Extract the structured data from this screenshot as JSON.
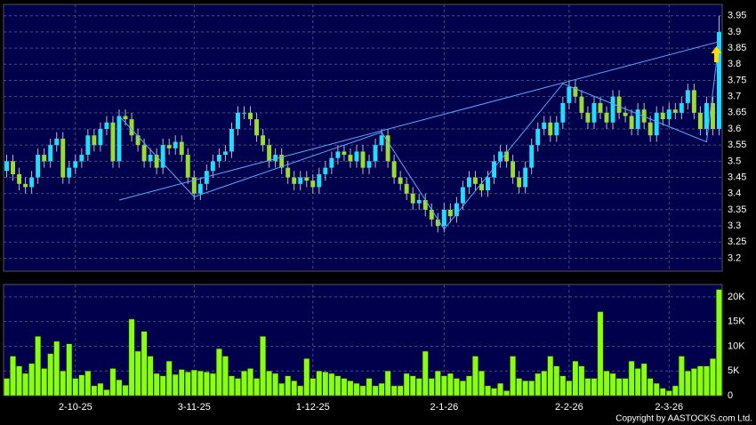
{
  "chart_data": [
    {
      "type": "candlestick",
      "categories": [
        null,
        null,
        null,
        null,
        null,
        null,
        null,
        null,
        null,
        null,
        null,
        "2-10-25",
        null,
        null,
        null,
        null,
        null,
        null,
        null,
        null,
        null,
        null,
        null,
        null,
        null,
        null,
        null,
        null,
        null,
        null,
        "3-11-25",
        null,
        null,
        null,
        null,
        null,
        null,
        null,
        null,
        null,
        null,
        null,
        null,
        null,
        null,
        null,
        null,
        null,
        null,
        "1-12-25",
        null,
        null,
        null,
        null,
        null,
        null,
        null,
        null,
        null,
        null,
        null,
        null,
        null,
        null,
        null,
        null,
        null,
        null,
        null,
        null,
        "2-1-26",
        null,
        null,
        null,
        null,
        null,
        null,
        null,
        null,
        null,
        null,
        null,
        null,
        null,
        null,
        null,
        null,
        null,
        null,
        null,
        "2-2-26",
        null,
        null,
        null,
        null,
        null,
        null,
        null,
        null,
        null,
        null,
        null,
        null,
        null,
        null,
        null,
        "2-3-26",
        null,
        null,
        null,
        null,
        null,
        null,
        null,
        null
      ],
      "open": [
        3.47,
        3.5,
        3.46,
        3.43,
        3.42,
        3.45,
        3.52,
        3.5,
        3.55,
        3.57,
        3.45,
        3.48,
        3.5,
        3.52,
        3.58,
        3.55,
        3.6,
        3.62,
        3.5,
        3.64,
        3.63,
        3.58,
        3.55,
        3.5,
        3.52,
        3.48,
        3.55,
        3.54,
        3.56,
        3.52,
        3.45,
        3.4,
        3.43,
        3.47,
        3.5,
        3.52,
        3.53,
        3.6,
        3.65,
        3.65,
        3.63,
        3.58,
        3.55,
        3.5,
        3.52,
        3.48,
        3.45,
        3.43,
        3.45,
        3.44,
        3.42,
        3.46,
        3.48,
        3.51,
        3.53,
        3.52,
        3.5,
        3.53,
        3.48,
        3.5,
        3.55,
        3.58,
        3.5,
        3.45,
        3.43,
        3.4,
        3.37,
        3.38,
        3.35,
        3.32,
        3.3,
        3.35,
        3.33,
        3.37,
        3.42,
        3.45,
        3.43,
        3.41,
        3.45,
        3.5,
        3.53,
        3.5,
        3.45,
        3.42,
        3.48,
        3.55,
        3.6,
        3.62,
        3.58,
        3.62,
        3.68,
        3.73,
        3.7,
        3.65,
        3.62,
        3.68,
        3.65,
        3.62,
        3.7,
        3.65,
        3.64,
        3.6,
        3.66,
        3.62,
        3.58,
        3.65,
        3.63,
        3.66,
        3.65,
        3.68,
        3.72,
        3.65,
        3.6,
        3.68,
        3.6
      ],
      "high": [
        3.52,
        3.52,
        3.48,
        3.45,
        3.47,
        3.54,
        3.54,
        3.57,
        3.59,
        3.59,
        3.5,
        3.52,
        3.54,
        3.6,
        3.6,
        3.62,
        3.64,
        3.64,
        3.66,
        3.66,
        3.65,
        3.6,
        3.57,
        3.54,
        3.54,
        3.57,
        3.57,
        3.58,
        3.58,
        3.54,
        3.47,
        3.45,
        3.49,
        3.52,
        3.54,
        3.55,
        3.62,
        3.67,
        3.67,
        3.67,
        3.65,
        3.6,
        3.57,
        3.54,
        3.54,
        3.5,
        3.47,
        3.47,
        3.47,
        3.46,
        3.48,
        3.5,
        3.53,
        3.55,
        3.55,
        3.54,
        3.55,
        3.55,
        3.52,
        3.57,
        3.6,
        3.6,
        3.52,
        3.47,
        3.45,
        3.42,
        3.4,
        3.4,
        3.37,
        3.34,
        3.37,
        3.37,
        3.39,
        3.44,
        3.47,
        3.47,
        3.45,
        3.47,
        3.52,
        3.55,
        3.55,
        3.52,
        3.47,
        3.5,
        3.57,
        3.62,
        3.64,
        3.64,
        3.64,
        3.7,
        3.75,
        3.75,
        3.72,
        3.67,
        3.7,
        3.7,
        3.67,
        3.72,
        3.72,
        3.67,
        3.66,
        3.68,
        3.68,
        3.64,
        3.67,
        3.67,
        3.68,
        3.68,
        3.7,
        3.74,
        3.74,
        3.67,
        3.7,
        3.7,
        3.95
      ],
      "low": [
        3.45,
        3.44,
        3.41,
        3.4,
        3.4,
        3.43,
        3.48,
        3.48,
        3.53,
        3.43,
        3.43,
        3.46,
        3.48,
        3.5,
        3.53,
        3.53,
        3.58,
        3.48,
        3.48,
        3.61,
        3.56,
        3.53,
        3.48,
        3.48,
        3.46,
        3.46,
        3.52,
        3.52,
        3.5,
        3.43,
        3.38,
        3.38,
        3.41,
        3.45,
        3.48,
        3.5,
        3.51,
        3.58,
        3.63,
        3.61,
        3.56,
        3.53,
        3.48,
        3.48,
        3.46,
        3.43,
        3.41,
        3.41,
        3.42,
        3.4,
        3.4,
        3.44,
        3.46,
        3.49,
        3.5,
        3.48,
        3.48,
        3.46,
        3.46,
        3.48,
        3.53,
        3.48,
        3.43,
        3.41,
        3.38,
        3.35,
        3.35,
        3.33,
        3.3,
        3.28,
        3.28,
        3.31,
        3.31,
        3.35,
        3.4,
        3.41,
        3.39,
        3.39,
        3.43,
        3.48,
        3.48,
        3.43,
        3.4,
        3.4,
        3.46,
        3.53,
        3.58,
        3.56,
        3.56,
        3.6,
        3.66,
        3.68,
        3.63,
        3.6,
        3.6,
        3.63,
        3.6,
        3.6,
        3.63,
        3.62,
        3.58,
        3.58,
        3.6,
        3.56,
        3.56,
        3.61,
        3.61,
        3.63,
        3.63,
        3.66,
        3.63,
        3.58,
        3.58,
        3.58,
        3.58
      ],
      "close": [
        3.5,
        3.46,
        3.43,
        3.42,
        3.45,
        3.52,
        3.5,
        3.55,
        3.57,
        3.45,
        3.48,
        3.5,
        3.52,
        3.58,
        3.55,
        3.6,
        3.62,
        3.5,
        3.64,
        3.63,
        3.58,
        3.55,
        3.5,
        3.52,
        3.48,
        3.55,
        3.54,
        3.56,
        3.52,
        3.45,
        3.4,
        3.43,
        3.47,
        3.5,
        3.52,
        3.53,
        3.6,
        3.65,
        3.65,
        3.63,
        3.58,
        3.55,
        3.5,
        3.52,
        3.48,
        3.45,
        3.43,
        3.45,
        3.44,
        3.42,
        3.46,
        3.48,
        3.51,
        3.53,
        3.52,
        3.5,
        3.53,
        3.48,
        3.5,
        3.55,
        3.58,
        3.5,
        3.45,
        3.43,
        3.4,
        3.37,
        3.38,
        3.35,
        3.32,
        3.3,
        3.35,
        3.33,
        3.37,
        3.42,
        3.45,
        3.43,
        3.41,
        3.45,
        3.5,
        3.53,
        3.5,
        3.45,
        3.42,
        3.48,
        3.55,
        3.6,
        3.62,
        3.58,
        3.62,
        3.68,
        3.73,
        3.7,
        3.65,
        3.62,
        3.68,
        3.65,
        3.62,
        3.7,
        3.65,
        3.64,
        3.6,
        3.66,
        3.62,
        3.58,
        3.65,
        3.63,
        3.66,
        3.65,
        3.68,
        3.72,
        3.65,
        3.6,
        3.68,
        3.6,
        3.9
      ],
      "up_color": "#22ddff",
      "down_color": "#99dd33",
      "ylim": [
        3.16,
        3.985
      ],
      "yticks": [
        3.2,
        3.25,
        3.3,
        3.35,
        3.4,
        3.45,
        3.5,
        3.55,
        3.6,
        3.65,
        3.7,
        3.75,
        3.8,
        3.85,
        3.9,
        3.95
      ],
      "grid": true,
      "trendlines": [
        {
          "color": "#55aaff",
          "x": [
            18,
            114
          ],
          "y": [
            3.38,
            3.87
          ]
        },
        {
          "color": "#55aaff",
          "x": [
            18,
            30,
            60,
            70,
            89,
            112,
            114
          ],
          "y": [
            3.64,
            3.39,
            3.59,
            3.29,
            3.74,
            3.56,
            3.87
          ]
        }
      ]
    },
    {
      "type": "bar",
      "values": [
        3500,
        8000,
        6000,
        4500,
        6500,
        12000,
        5500,
        8500,
        11000,
        5000,
        10500,
        3500,
        4200,
        5000,
        2000,
        2500,
        1200,
        5500,
        3200,
        2100,
        15500,
        9000,
        13000,
        8000,
        4500,
        4000,
        7000,
        4300,
        5300,
        4800,
        5200,
        5000,
        4800,
        4500,
        9500,
        8000,
        4000,
        3500,
        5000,
        5500,
        3500,
        12000,
        5000,
        4500,
        2500,
        4000,
        3000,
        2000,
        7500,
        3500,
        5000,
        4800,
        4500,
        4000,
        3500,
        3000,
        2500,
        2000,
        3500,
        2000,
        2500,
        5000,
        2000,
        2000,
        4500,
        4000,
        3500,
        9000,
        3500,
        5000,
        4000,
        4500,
        3500,
        3000,
        4000,
        8000,
        5000,
        2000,
        1500,
        2500,
        1000,
        8000,
        3500,
        3000,
        3000,
        4500,
        5000,
        8000,
        6000,
        4000,
        3000,
        7000,
        6000,
        3500,
        3500,
        17000,
        5000,
        4500,
        3500,
        3500,
        7000,
        5500,
        6500,
        3500,
        2500,
        1500,
        1000,
        2000,
        8000,
        5000,
        5500,
        6000,
        6000,
        7500,
        21500
      ],
      "color": "#88ff11",
      "ylim": [
        0,
        22500
      ],
      "yticks": [
        0,
        {
          "value": 5000,
          "label": "5K"
        },
        {
          "value": 10000,
          "label": "10K"
        },
        {
          "value": 15000,
          "label": "15K"
        },
        {
          "value": 20000,
          "label": "20K"
        }
      ],
      "grid": true
    }
  ],
  "copyright": "Copyright by AASTOCKS.com Ltd."
}
